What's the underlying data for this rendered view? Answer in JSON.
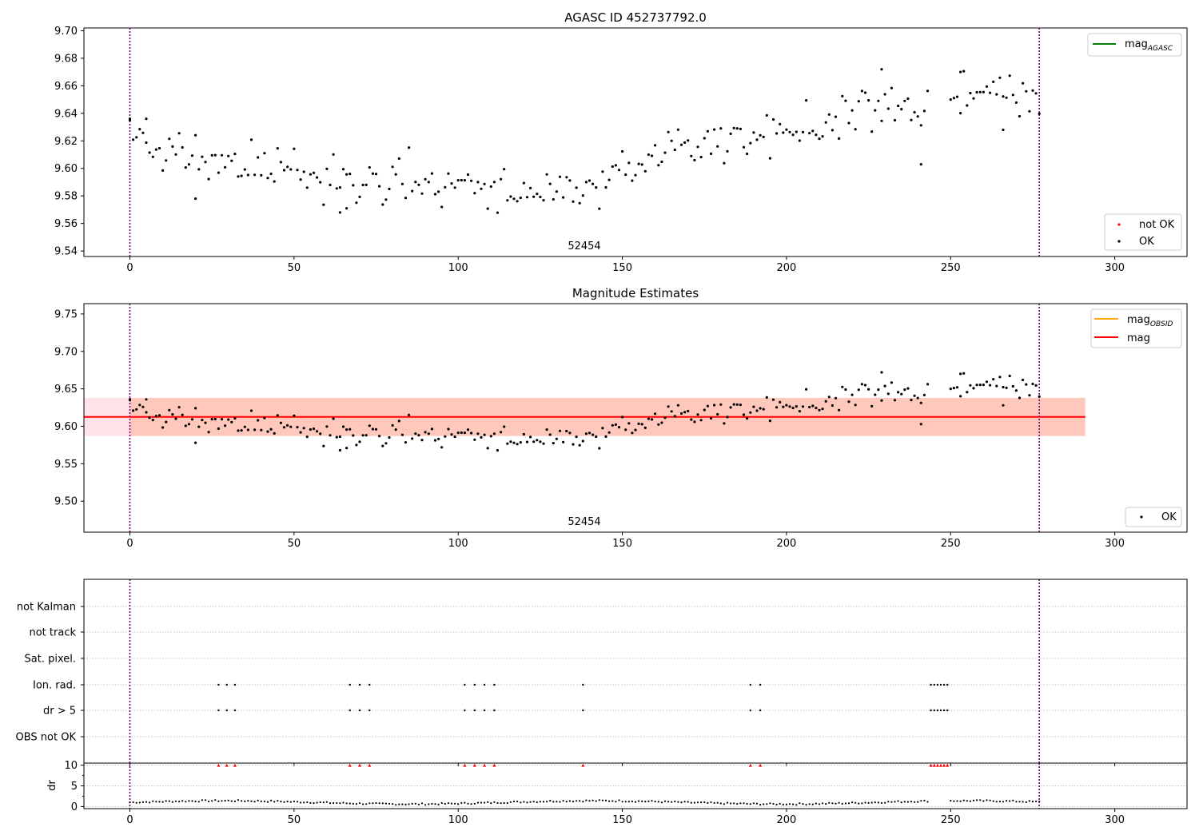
{
  "colors": {
    "ok": "#000000",
    "not_ok": "#ff0000",
    "agasc_line": "#008000",
    "obsid_line": "#ffa500",
    "mag_line": "#ff0000",
    "band_outer": "#ffc0cb",
    "band_inner": "#ffa07a",
    "obs_boundary": "#800080",
    "grid": "#b0b0b0"
  },
  "chart_data": [
    {
      "type": "scatter",
      "title": "AGASC ID 452737792.0",
      "xlim": [
        -14,
        322
      ],
      "ylim": [
        9.536,
        9.702
      ],
      "xticks": [
        0,
        50,
        100,
        150,
        200,
        250,
        300
      ],
      "yticks": [
        9.54,
        9.56,
        9.58,
        9.6,
        9.62,
        9.64,
        9.66,
        9.68,
        9.7
      ],
      "ytick_labels": [
        "9.54",
        "9.56",
        "9.58",
        "9.60",
        "9.62",
        "9.64",
        "9.66",
        "9.68",
        "9.70"
      ],
      "obsid_label": "52454",
      "obsid_label_x": 138,
      "obs_boundaries": [
        0,
        277
      ],
      "legend_lines": [
        {
          "main": "mag",
          "sub": "AGASC",
          "color": "#008000"
        }
      ],
      "legend_points": [
        {
          "label": "not OK",
          "color": "#ff0000"
        },
        {
          "label": "OK",
          "color": "#000000"
        }
      ]
    },
    {
      "type": "scatter",
      "title": "Magnitude Estimates",
      "xlim": [
        -14,
        322
      ],
      "ylim": [
        9.4586,
        9.7638
      ],
      "xticks": [
        0,
        50,
        100,
        150,
        200,
        250,
        300
      ],
      "yticks": [
        9.5,
        9.55,
        9.6,
        9.65,
        9.7,
        9.75
      ],
      "ytick_labels": [
        "9.50",
        "9.55",
        "9.60",
        "9.65",
        "9.70",
        "9.75"
      ],
      "obsid_label": "52454",
      "obsid_label_x": 138,
      "obs_boundaries": [
        0,
        277
      ],
      "mag_mean": 9.6125,
      "band_outer": {
        "x": [
          -14,
          291
        ],
        "y": [
          9.587,
          9.638
        ]
      },
      "band_inner": {
        "x": [
          0,
          291
        ],
        "y": [
          9.587,
          9.638
        ]
      },
      "legend_lines": [
        {
          "main": "mag",
          "sub": "OBSID",
          "color": "#ffa500"
        },
        {
          "main": "mag",
          "sub": "",
          "color": "#ff0000"
        }
      ],
      "legend_points": [
        {
          "label": "OK",
          "color": "#000000"
        }
      ]
    },
    {
      "type": "flags",
      "xlim": [
        -14,
        322
      ],
      "xticks": [
        0,
        50,
        100,
        150,
        200,
        250,
        300
      ],
      "categories": [
        "not Kalman",
        "not track",
        "Sat. pixel.",
        "Ion. rad.",
        "dr > 5",
        "OBS not OK"
      ],
      "flagged_x": [
        27,
        29.5,
        32,
        67,
        70,
        73,
        102,
        105,
        108,
        111,
        138,
        189,
        192,
        244,
        245,
        246,
        247,
        248,
        249
      ],
      "obs_boundaries": [
        0,
        277
      ]
    },
    {
      "type": "scatter",
      "ylabel": "dr",
      "xlim": [
        -14,
        322
      ],
      "ylim": [
        -0.5,
        10.5
      ],
      "xticks": [
        0,
        50,
        100,
        150,
        200,
        250,
        300
      ],
      "yticks": [
        0,
        5,
        10
      ],
      "ytick_labels": [
        "0",
        "5",
        "10"
      ],
      "capped_value": 10,
      "capped_x": [
        27,
        29.5,
        32,
        67,
        70,
        73,
        102,
        105,
        108,
        111,
        138,
        189,
        192,
        244,
        245,
        246,
        247,
        248,
        249
      ],
      "obs_boundaries": [
        0,
        277
      ]
    }
  ]
}
